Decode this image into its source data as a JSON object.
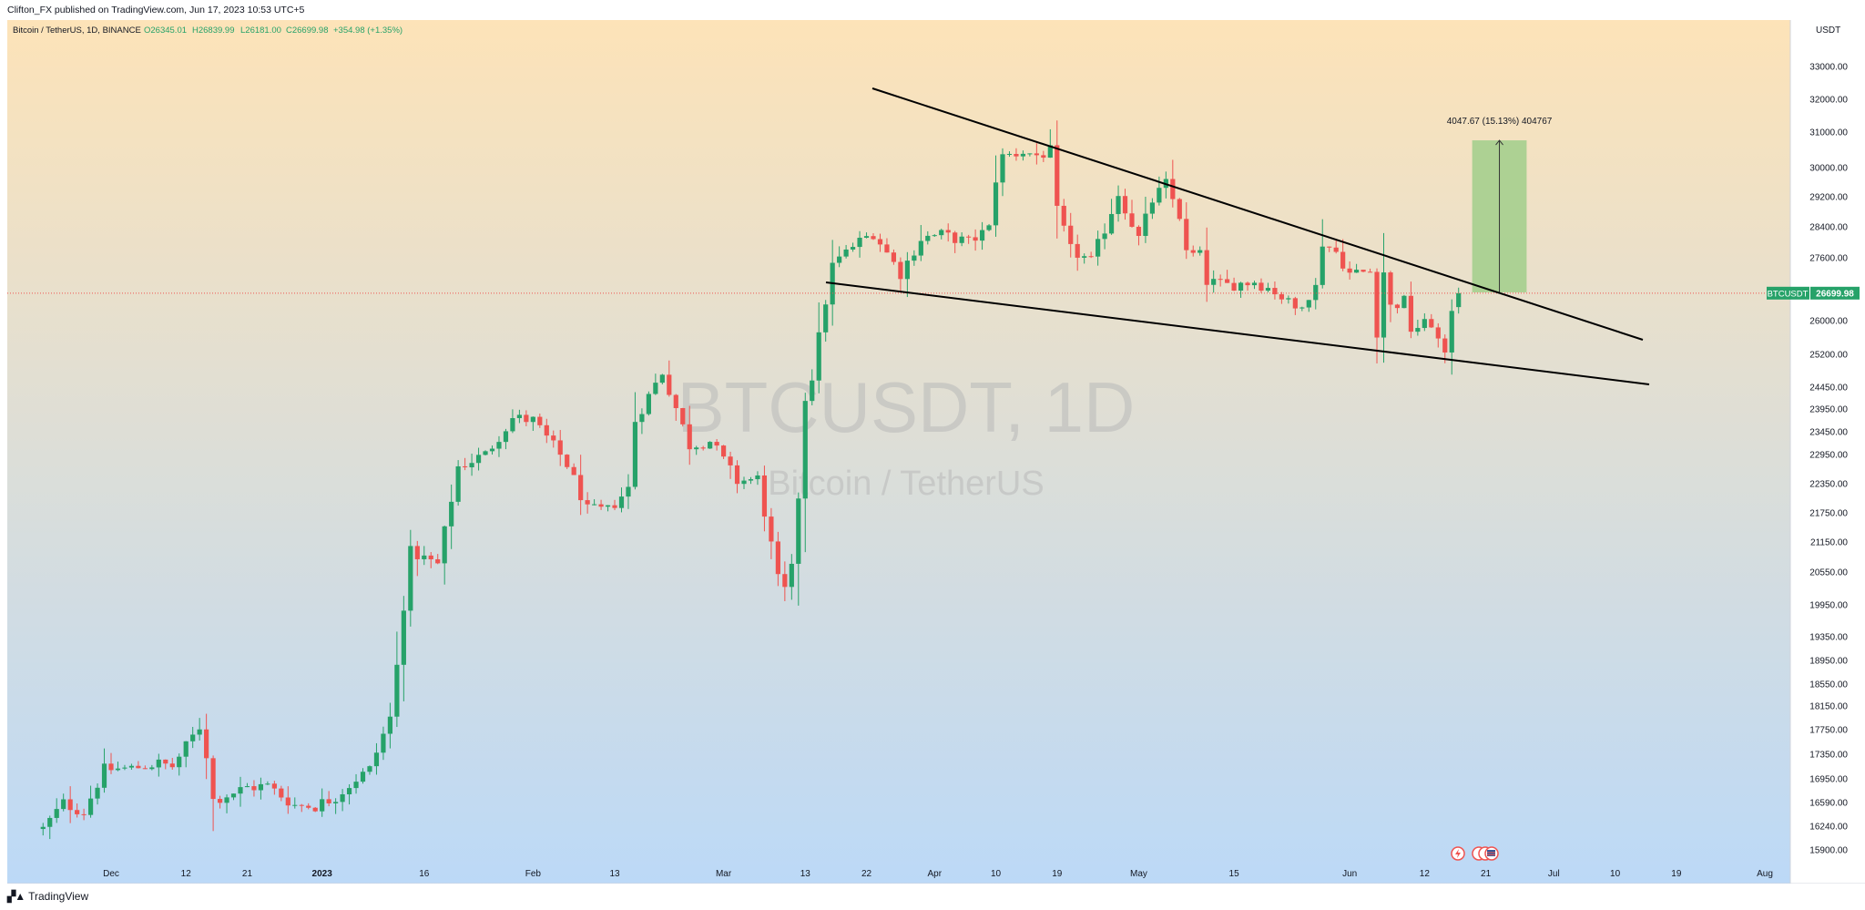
{
  "header": {
    "published": "Clifton_FX published on TradingView.com, Jun 17, 2023 10:53 UTC+5"
  },
  "legend": {
    "symbol": "Bitcoin / TetherUS, 1D, BINANCE",
    "open": "O26345.01",
    "high": "H26839.99",
    "low": "L26181.00",
    "close": "C26699.98",
    "change": "+354.98 (+1.35%)"
  },
  "watermark": {
    "ticker": "BTCUSDT, 1D",
    "name": "Bitcoin / TetherUS"
  },
  "price_tag": {
    "symbol": "BTCUSDT",
    "price": "26699.98"
  },
  "measure": {
    "label": "4047.67 (15.13%) 404767"
  },
  "footer": {
    "brand": "TradingView"
  },
  "colors": {
    "up": "#26a269",
    "down": "#ef5350",
    "bg_top": "#fde3b8",
    "bg_bottom": "#bcd9f7",
    "target_box": "#a5cf8e"
  },
  "chart_data": {
    "type": "candlestick",
    "currency": "USDT",
    "y_axis_ticks": [
      33000.0,
      32000.0,
      31000.0,
      30000.0,
      29200.0,
      28400.0,
      27600.0,
      26000.0,
      25200.0,
      24450.0,
      23950.0,
      23450.0,
      22950.0,
      22350.0,
      21750.0,
      21150.0,
      20550.0,
      19950.0,
      19350.0,
      18950.0,
      18550.0,
      18150.0,
      17750.0,
      17350.0,
      16950.0,
      16590.0,
      16240.0,
      15900.0
    ],
    "x_axis_labels": [
      {
        "label": "Dec",
        "date": "2022-12-01"
      },
      {
        "label": "12",
        "date": "2022-12-12"
      },
      {
        "label": "21",
        "date": "2022-12-21"
      },
      {
        "label": "2023",
        "date": "2023-01-01"
      },
      {
        "label": "16",
        "date": "2023-01-16"
      },
      {
        "label": "Feb",
        "date": "2023-02-01"
      },
      {
        "label": "13",
        "date": "2023-02-13"
      },
      {
        "label": "Mar",
        "date": "2023-03-01"
      },
      {
        "label": "13",
        "date": "2023-03-13"
      },
      {
        "label": "22",
        "date": "2023-03-22"
      },
      {
        "label": "Apr",
        "date": "2023-04-01"
      },
      {
        "label": "10",
        "date": "2023-04-10"
      },
      {
        "label": "19",
        "date": "2023-04-19"
      },
      {
        "label": "May",
        "date": "2023-05-01"
      },
      {
        "label": "15",
        "date": "2023-05-15"
      },
      {
        "label": "Jun",
        "date": "2023-06-01"
      },
      {
        "label": "12",
        "date": "2023-06-12"
      },
      {
        "label": "21",
        "date": "2023-06-21"
      },
      {
        "label": "Jul",
        "date": "2023-07-01"
      },
      {
        "label": "10",
        "date": "2023-07-10"
      },
      {
        "label": "19",
        "date": "2023-07-19"
      },
      {
        "label": "Aug",
        "date": "2023-08-01"
      }
    ],
    "first_date": "2022-11-21",
    "last_date": "2023-06-17",
    "close_anchors": [
      [
        "2022-11-21",
        16200
      ],
      [
        "2022-11-24",
        16580
      ],
      [
        "2022-11-27",
        16450
      ],
      [
        "2022-11-30",
        17100
      ],
      [
        "2022-12-04",
        17120
      ],
      [
        "2022-12-08",
        17200
      ],
      [
        "2022-12-10",
        17150
      ],
      [
        "2022-12-14",
        17800
      ],
      [
        "2022-12-15",
        17350
      ],
      [
        "2022-12-16",
        16630
      ],
      [
        "2022-12-21",
        16820
      ],
      [
        "2022-12-24",
        16840
      ],
      [
        "2022-12-28",
        16550
      ],
      [
        "2022-12-31",
        16540
      ],
      [
        "2023-01-03",
        16680
      ],
      [
        "2023-01-06",
        16950
      ],
      [
        "2023-01-08",
        17100
      ],
      [
        "2023-01-11",
        17950
      ],
      [
        "2023-01-12",
        18850
      ],
      [
        "2023-01-13",
        19950
      ],
      [
        "2023-01-14",
        20950
      ],
      [
        "2023-01-18",
        20700
      ],
      [
        "2023-01-21",
        22700
      ],
      [
        "2023-01-25",
        22950
      ],
      [
        "2023-01-29",
        23750
      ],
      [
        "2023-02-01",
        23700
      ],
      [
        "2023-02-06",
        22750
      ],
      [
        "2023-02-09",
        21800
      ],
      [
        "2023-02-12",
        21800
      ],
      [
        "2023-02-15",
        22250
      ],
      [
        "2023-02-16",
        23700
      ],
      [
        "2023-02-20",
        24800
      ],
      [
        "2023-02-24",
        23150
      ],
      [
        "2023-02-27",
        23250
      ],
      [
        "2023-03-03",
        22400
      ],
      [
        "2023-03-06",
        22450
      ],
      [
        "2023-03-09",
        20400
      ],
      [
        "2023-03-10",
        20200
      ],
      [
        "2023-03-11",
        20600
      ],
      [
        "2023-03-12",
        22100
      ],
      [
        "2023-03-13",
        24200
      ],
      [
        "2023-03-14",
        24700
      ],
      [
        "2023-03-17",
        27400
      ],
      [
        "2023-03-20",
        27900
      ],
      [
        "2023-03-23",
        28250
      ],
      [
        "2023-03-27",
        27200
      ],
      [
        "2023-03-30",
        28100
      ],
      [
        "2023-04-02",
        28200
      ],
      [
        "2023-04-06",
        28000
      ],
      [
        "2023-04-09",
        28350
      ],
      [
        "2023-04-10",
        29700
      ],
      [
        "2023-04-11",
        30300
      ],
      [
        "2023-04-14",
        30450
      ],
      [
        "2023-04-16",
        30350
      ],
      [
        "2023-04-18",
        30450
      ],
      [
        "2023-04-19",
        28800
      ],
      [
        "2023-04-21",
        27800
      ],
      [
        "2023-04-24",
        27500
      ],
      [
        "2023-04-26",
        28350
      ],
      [
        "2023-04-28",
        29300
      ],
      [
        "2023-05-01",
        28100
      ],
      [
        "2023-05-03",
        29100
      ],
      [
        "2023-05-05",
        29550
      ],
      [
        "2023-05-07",
        28700
      ],
      [
        "2023-05-08",
        27700
      ],
      [
        "2023-05-10",
        27650
      ],
      [
        "2023-05-11",
        27000
      ],
      [
        "2023-05-14",
        26900
      ],
      [
        "2023-05-18",
        27000
      ],
      [
        "2023-05-21",
        26750
      ],
      [
        "2023-05-24",
        26300
      ],
      [
        "2023-05-27",
        26850
      ],
      [
        "2023-05-28",
        28000
      ],
      [
        "2023-05-30",
        27750
      ],
      [
        "2023-06-01",
        27200
      ],
      [
        "2023-06-04",
        27250
      ],
      [
        "2023-06-05",
        25750
      ],
      [
        "2023-06-06",
        27250
      ],
      [
        "2023-06-07",
        26350
      ],
      [
        "2023-06-09",
        26500
      ],
      [
        "2023-06-10",
        25800
      ],
      [
        "2023-06-13",
        25950
      ],
      [
        "2023-06-15",
        25100
      ],
      [
        "2023-06-16",
        26340
      ],
      [
        "2023-06-17",
        26699.98
      ]
    ]
  }
}
